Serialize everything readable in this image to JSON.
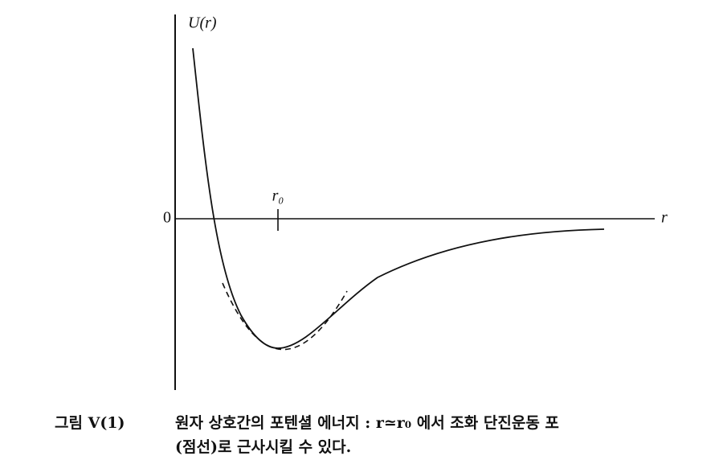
{
  "axes": {
    "y_label": "U(r)",
    "x_label": "r",
    "origin_label": "0",
    "marker_label": "r₀"
  },
  "caption": {
    "figure_number": "그림 V(1)",
    "lines": [
      "원자 상호간의 포텐셜 에너지 : r≃r₀ 에서 조화  단진운동 포",
      "(점선)로 근사시킬 수 있다."
    ]
  }
}
